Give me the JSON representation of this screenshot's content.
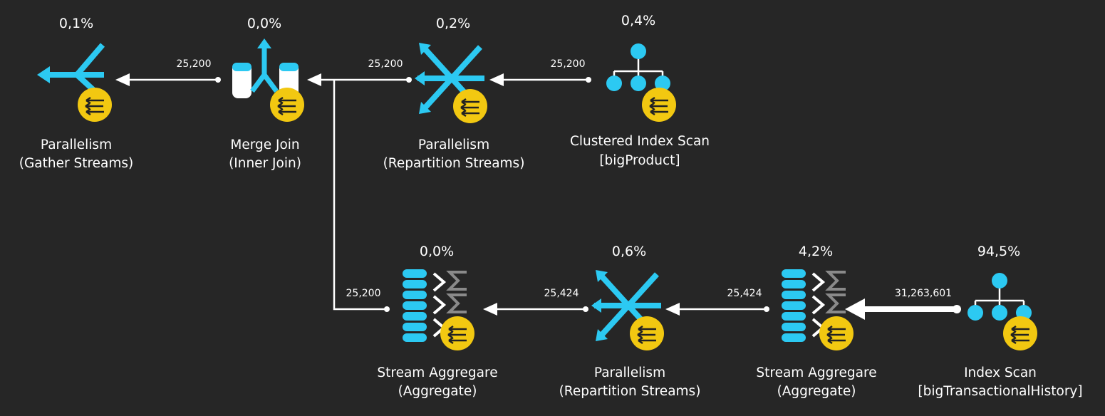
{
  "colors": {
    "background": "#262626",
    "operator_blue": "#2cc9f2",
    "parallel_badge": "#f2c811",
    "connector": "#ffffff"
  },
  "nodes": {
    "gather": {
      "cost": "0,1%",
      "line1": "Parallelism",
      "line2": "(Gather Streams)",
      "icon": "parallelism-gather-icon"
    },
    "merge_join": {
      "cost": "0,0%",
      "line1": "Merge Join",
      "line2": "(Inner Join)",
      "icon": "merge-join-icon"
    },
    "repartition_top": {
      "cost": "0,2%",
      "line1": "Parallelism",
      "line2": "(Repartition Streams)",
      "icon": "parallelism-repartition-icon"
    },
    "clustered_scan": {
      "cost": "0,4%",
      "line1": "Clustered Index Scan",
      "line2": "[bigProduct]",
      "icon": "clustered-index-scan-icon"
    },
    "aggregate_left": {
      "cost": "0,0%",
      "line1": "Stream Aggregare",
      "line2": "(Aggregate)",
      "icon": "stream-aggregate-icon"
    },
    "repartition_bottom": {
      "cost": "0,6%",
      "line1": "Parallelism",
      "line2": "(Repartition Streams)",
      "icon": "parallelism-repartition-icon"
    },
    "aggregate_right": {
      "cost": "4,2%",
      "line1": "Stream Aggregare",
      "line2": "(Aggregate)",
      "icon": "stream-aggregate-icon"
    },
    "index_scan": {
      "cost": "94,5%",
      "line1": "Index Scan",
      "line2": "[bigTransactionalHistory]",
      "icon": "index-scan-icon"
    }
  },
  "edges": {
    "merge_to_gather": "25,200",
    "repartition_to_merge": "25,200",
    "scan_to_repartition": "25,200",
    "aggregate_to_merge": "25,200",
    "repartition_to_aggregate": "25,424",
    "aggregate_to_repartition": "25,424",
    "indexscan_to_aggregate": "31,263,601"
  }
}
